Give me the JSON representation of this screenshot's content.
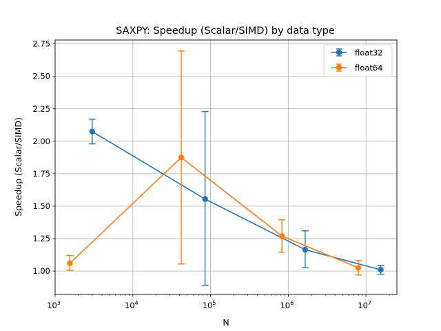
{
  "chart_data": {
    "type": "line",
    "title": "SAXPY: Speedup (Scalar/SIMD) by data type",
    "xlabel": "N",
    "ylabel": "Speedup (Scalar/SIMD)",
    "xscale": "log",
    "xlim": [
      1000,
      25000000
    ],
    "ylim": [
      0.82,
      2.78
    ],
    "grid": true,
    "legend_position": "top-right",
    "x_ticks": [
      {
        "value": 1000,
        "base": "10",
        "exp": "3"
      },
      {
        "value": 10000,
        "base": "10",
        "exp": "4"
      },
      {
        "value": 100000,
        "base": "10",
        "exp": "5"
      },
      {
        "value": 1000000,
        "base": "10",
        "exp": "6"
      },
      {
        "value": 10000000,
        "base": "10",
        "exp": "7"
      }
    ],
    "y_ticks": [
      {
        "value": 1.0,
        "label": "1.00"
      },
      {
        "value": 1.25,
        "label": "1.25"
      },
      {
        "value": 1.5,
        "label": "1.50"
      },
      {
        "value": 1.75,
        "label": "1.75"
      },
      {
        "value": 2.0,
        "label": "2.00"
      },
      {
        "value": 2.25,
        "label": "2.25"
      },
      {
        "value": 2.5,
        "label": "2.50"
      },
      {
        "value": 2.75,
        "label": "2.75"
      }
    ],
    "series": [
      {
        "name": "float32",
        "color": "#1f77b4",
        "points": [
          {
            "x": 3000,
            "y": 2.075,
            "err_low": 1.98,
            "err_high": 2.17
          },
          {
            "x": 85000,
            "y": 1.555,
            "err_low": 0.89,
            "err_high": 2.23
          },
          {
            "x": 1650000,
            "y": 1.165,
            "err_low": 1.025,
            "err_high": 1.31
          },
          {
            "x": 15500000,
            "y": 1.01,
            "err_low": 0.975,
            "err_high": 1.045
          }
        ]
      },
      {
        "name": "float64",
        "color": "#ff7f0e",
        "points": [
          {
            "x": 1550,
            "y": 1.06,
            "err_low": 1.005,
            "err_high": 1.12
          },
          {
            "x": 42000,
            "y": 1.875,
            "err_low": 1.055,
            "err_high": 2.695
          },
          {
            "x": 830000,
            "y": 1.27,
            "err_low": 1.145,
            "err_high": 1.395
          },
          {
            "x": 8000000,
            "y": 1.025,
            "err_low": 0.97,
            "err_high": 1.08
          }
        ]
      }
    ]
  }
}
